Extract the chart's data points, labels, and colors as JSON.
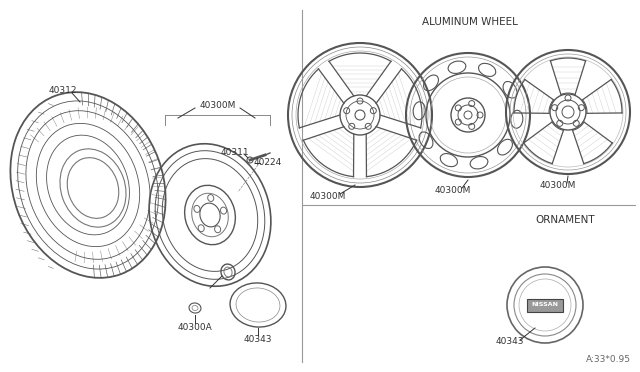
{
  "bg_color": "#ffffff",
  "line_color": "#555555",
  "dark_line": "#333333",
  "section_aluminum": "ALUMINUM WHEEL",
  "section_ornament": "ORNAMENT",
  "part_numbers": {
    "tire": "40312",
    "wheel_top": "40300M",
    "valve_stem": "40311",
    "valve_label": "40224",
    "nut": "40300A",
    "cap": "40343",
    "cap_label2": "40343",
    "al_wheel1": "40300M",
    "al_wheel2": "40300M",
    "al_wheel3": "40300M"
  },
  "ref_code": "A:33*0.95",
  "nissan_label": "NISSAN"
}
